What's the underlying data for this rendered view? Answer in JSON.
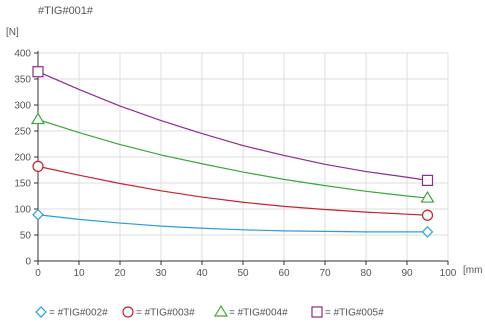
{
  "chart_data": {
    "type": "line",
    "title": "#TIG#001#",
    "ylabel": "[N]",
    "xlabel": "[mm",
    "xlim": [
      0,
      100
    ],
    "ylim": [
      0,
      400
    ],
    "x_ticks": [
      0,
      10,
      20,
      30,
      40,
      50,
      60,
      70,
      80,
      90,
      100
    ],
    "y_ticks": [
      0,
      50,
      100,
      150,
      200,
      250,
      300,
      350,
      400
    ],
    "grid": true,
    "legend_position": "bottom",
    "series": [
      {
        "name": "#TIG#002#",
        "color": "#2a9fd8",
        "marker": "diamond",
        "x": [
          0,
          10,
          20,
          30,
          40,
          50,
          60,
          70,
          80,
          90,
          95
        ],
        "y": [
          89,
          80,
          73,
          67,
          63,
          60,
          58,
          57,
          56,
          56,
          56
        ]
      },
      {
        "name": "#TIG#003#",
        "color": "#c8232c",
        "marker": "circle",
        "x": [
          0,
          10,
          20,
          30,
          40,
          50,
          60,
          70,
          80,
          90,
          95
        ],
        "y": [
          182,
          165,
          149,
          135,
          123,
          113,
          105,
          99,
          94,
          90,
          88
        ]
      },
      {
        "name": "#TIG#004#",
        "color": "#3aa83a",
        "marker": "triangle",
        "x": [
          0,
          10,
          20,
          30,
          40,
          50,
          60,
          70,
          80,
          90,
          95
        ],
        "y": [
          272,
          247,
          224,
          204,
          187,
          171,
          157,
          145,
          134,
          125,
          121
        ]
      },
      {
        "name": "#TIG#005#",
        "color": "#8e2a8e",
        "marker": "square",
        "x": [
          0,
          10,
          20,
          30,
          40,
          50,
          60,
          70,
          80,
          90,
          95
        ],
        "y": [
          364,
          330,
          298,
          270,
          245,
          222,
          203,
          186,
          172,
          161,
          155
        ]
      }
    ]
  }
}
